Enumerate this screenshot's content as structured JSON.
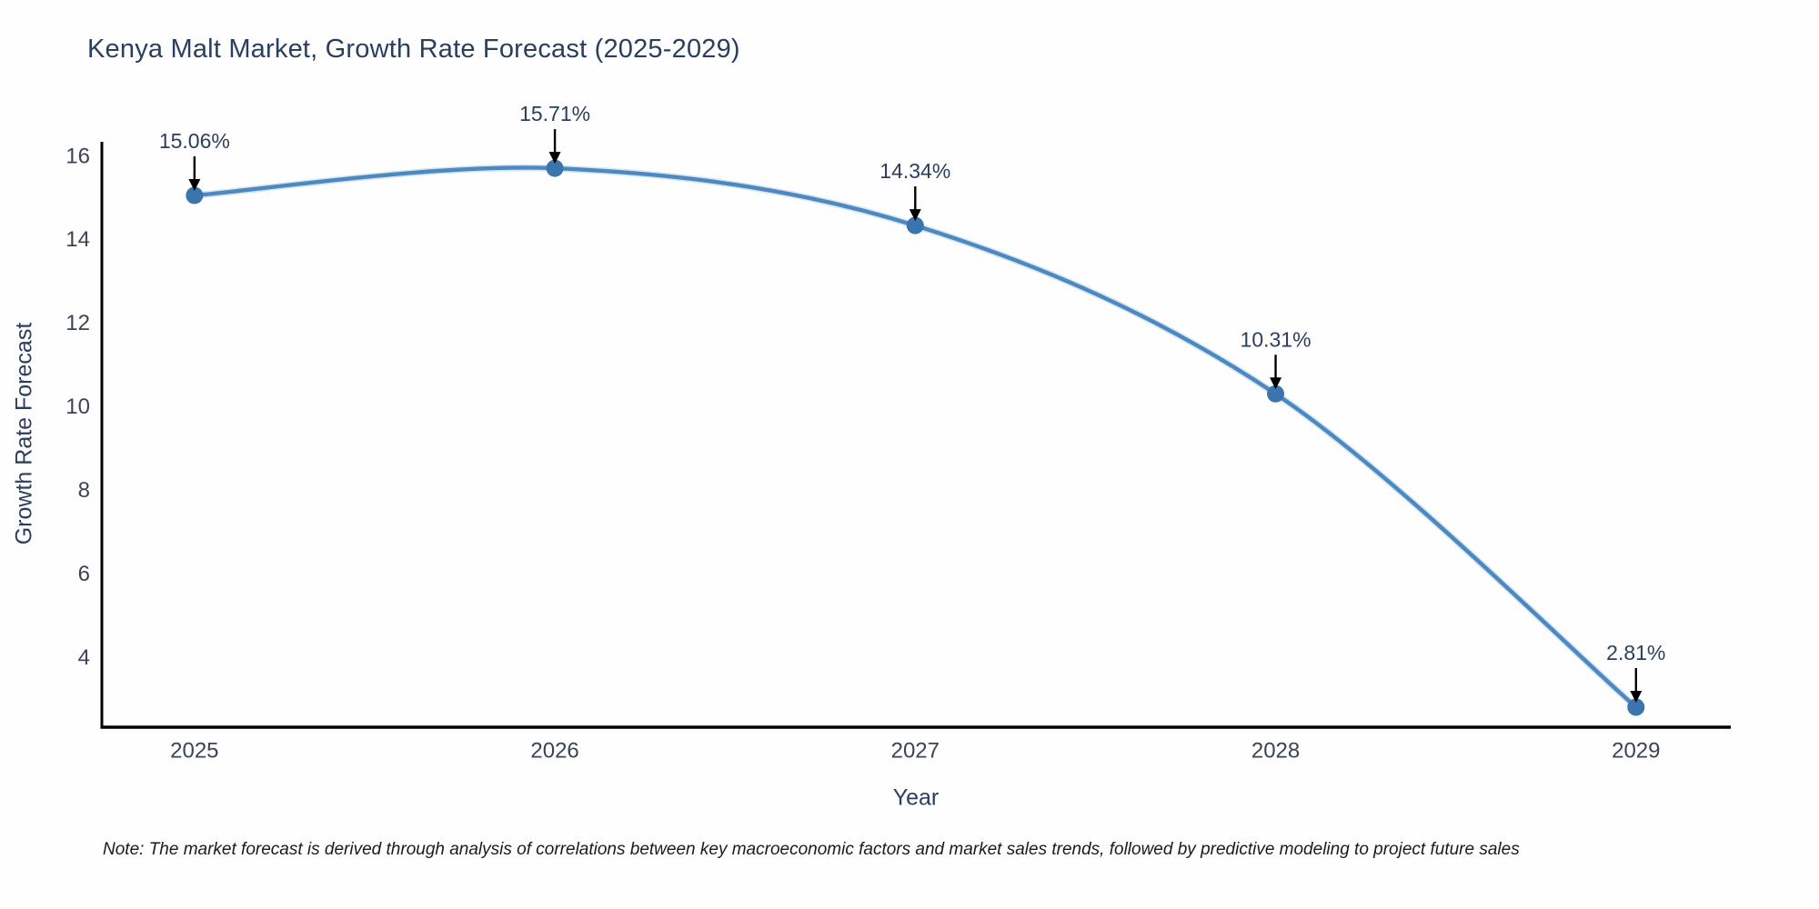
{
  "note": {
    "text": "Note: The market forecast is derived through analysis of correlations between key macroeconomic factors and market sales trends, followed by predictive modeling to project future sales"
  },
  "chart_data": {
    "type": "line",
    "title": "Kenya Malt Market, Growth Rate Forecast (2025-2029)",
    "xlabel": "Year",
    "ylabel": "Growth Rate Forecast",
    "categories": [
      2025,
      2026,
      2027,
      2028,
      2029
    ],
    "values": [
      15.06,
      15.71,
      14.34,
      10.31,
      2.81
    ],
    "point_labels": [
      "15.06%",
      "15.71%",
      "14.34%",
      "10.31%",
      "2.81%"
    ],
    "yticks": [
      4,
      6,
      8,
      10,
      12,
      14,
      16
    ],
    "xlim": [
      2024.743,
      2029.263
    ],
    "ylim": [
      2.33,
      16.3
    ],
    "line_shape": "spline",
    "grid": false,
    "legend": "none",
    "colors": {
      "line": "#4d89c0",
      "line_halo": "#aacbe5",
      "marker": "#3a76ad",
      "axis": "#000000",
      "tick_text": "#3b4455",
      "annotation_text": "#2a3f5f",
      "annotation_arrow": "#000000",
      "background": "#fefefe"
    }
  }
}
